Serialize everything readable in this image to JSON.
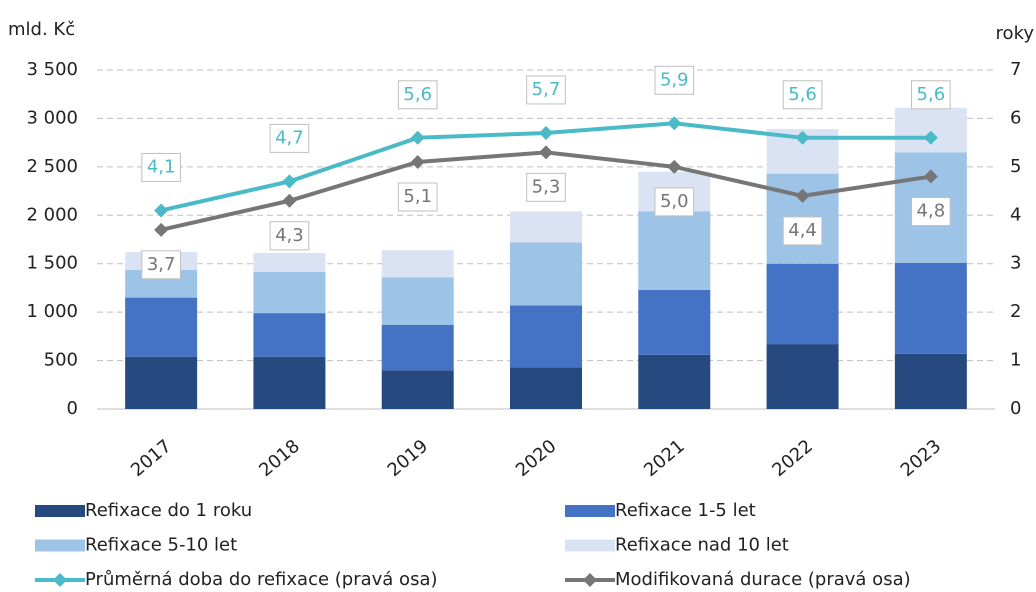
{
  "chart_data": {
    "type": "bar",
    "stacked": true,
    "ylabel": "mld. Kč",
    "y2label": "roky",
    "categories": [
      "2017",
      "2018",
      "2019",
      "2020",
      "2021",
      "2022",
      "2023"
    ],
    "series": [
      {
        "name": "Refixace do 1 roku",
        "color": "#264a7f",
        "values": [
          540,
          540,
          400,
          430,
          560,
          670,
          570
        ]
      },
      {
        "name": "Refixace 1-5 let",
        "color": "#4472c4",
        "values": [
          610,
          450,
          470,
          640,
          670,
          830,
          940
        ]
      },
      {
        "name": "Refixace 5-10 let",
        "color": "#9dc3e6",
        "values": [
          285,
          425,
          490,
          650,
          810,
          930,
          1140
        ]
      },
      {
        "name": "Refixace nad 10 let",
        "color": "#dae3f3",
        "values": [
          185,
          195,
          280,
          320,
          410,
          460,
          460
        ]
      },
      {
        "name": "Průměrná doba do refixace (pravá osa)",
        "type": "line",
        "axis": "y2",
        "color": "#4bbac8",
        "label_side": "above",
        "values": [
          4.1,
          4.7,
          5.6,
          5.7,
          5.9,
          5.6,
          5.6
        ],
        "value_labels": [
          "4,1",
          "4,7",
          "5,6",
          "5,7",
          "5,9",
          "5,6",
          "5,6"
        ]
      },
      {
        "name": "Modifikovaná durace (pravá osa)",
        "type": "line",
        "axis": "y2",
        "color": "#767676",
        "label_side": "below",
        "values": [
          3.7,
          4.3,
          5.1,
          5.3,
          5.0,
          4.4,
          4.8
        ],
        "value_labels": [
          "3,7",
          "4,3",
          "5,1",
          "5,3",
          "5,0",
          "4,4",
          "4,8"
        ]
      }
    ],
    "ylim": [
      0,
      3500
    ],
    "yticks": [
      0,
      500,
      {
        "value": 1000,
        "label": "1 000"
      },
      {
        "value": 1500,
        "label": "1 500"
      },
      {
        "value": 2000,
        "label": "2 000"
      },
      {
        "value": 2500,
        "label": "2 500"
      },
      {
        "value": 3000,
        "label": "3 000"
      },
      {
        "value": 3500,
        "label": "3 500"
      }
    ],
    "y2lim": [
      0,
      7
    ],
    "y2ticks": [
      0,
      1,
      2,
      3,
      4,
      5,
      6,
      7
    ],
    "grid": true,
    "legend": "bottom"
  }
}
